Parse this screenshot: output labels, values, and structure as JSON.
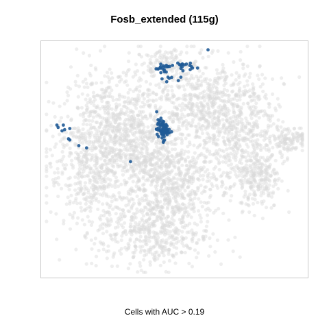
{
  "chart_data": {
    "type": "scatter",
    "title": "Fosb_extended (115g)",
    "xlabel": "Cells with AUC > 0.19",
    "ylabel": "",
    "grid": false,
    "legend": "none",
    "colors": {
      "background_cells": "#d9d9d9",
      "highlighted_cells": "#1f5a96",
      "frame": "#c8c8c8"
    },
    "xlim": [
      0,
      100
    ],
    "ylim": [
      0,
      100
    ],
    "series": [
      {
        "role": "background",
        "clusters": [
          {
            "cx": 27,
            "cy": 64,
            "sx": 10,
            "sy": 12,
            "n": 700
          },
          {
            "cx": 19,
            "cy": 44,
            "sx": 9,
            "sy": 12,
            "n": 420
          },
          {
            "cx": 40,
            "cy": 48,
            "sx": 6,
            "sy": 11,
            "n": 320
          },
          {
            "cx": 52,
            "cy": 40,
            "sx": 8,
            "sy": 8,
            "n": 380
          },
          {
            "cx": 62,
            "cy": 74,
            "sx": 11,
            "sy": 10,
            "n": 650
          },
          {
            "cx": 76,
            "cy": 57,
            "sx": 8,
            "sy": 12,
            "n": 430
          },
          {
            "cx": 42,
            "cy": 18,
            "sx": 11,
            "sy": 8,
            "n": 520
          },
          {
            "cx": 83,
            "cy": 42,
            "sx": 4,
            "sy": 7,
            "n": 180
          },
          {
            "cx": 94,
            "cy": 59,
            "sx": 4,
            "sy": 3,
            "n": 110
          },
          {
            "cx": 47,
            "cy": 92,
            "sx": 6,
            "sy": 3,
            "n": 120
          }
        ]
      },
      {
        "role": "highlighted",
        "clusters": [
          {
            "cx": 45.5,
            "cy": 63,
            "sx": 1.2,
            "sy": 2.2,
            "n": 75
          },
          {
            "cx": 45.5,
            "cy": 90,
            "sx": 1.5,
            "sy": 1.6,
            "n": 22
          },
          {
            "cx": 53,
            "cy": 91,
            "sx": 1.8,
            "sy": 1,
            "n": 14
          }
        ],
        "points": [
          [
            63,
            98
          ],
          [
            57,
            90
          ],
          [
            53,
            90.5
          ],
          [
            52,
            91.5
          ],
          [
            47.5,
            86
          ],
          [
            48,
            85.5
          ],
          [
            47,
            84
          ],
          [
            52.5,
            86
          ],
          [
            51.5,
            84.5
          ],
          [
            4.5,
            65
          ],
          [
            5,
            64
          ],
          [
            7,
            65
          ],
          [
            7.5,
            63
          ],
          [
            6.5,
            62.5
          ],
          [
            9.5,
            63.5
          ],
          [
            9,
            59
          ],
          [
            9.5,
            58.5
          ],
          [
            13,
            56
          ],
          [
            16,
            55
          ],
          [
            33,
            49
          ]
        ]
      }
    ]
  },
  "title": "Fosb_extended (115g)",
  "caption": "Cells with AUC > 0.19"
}
